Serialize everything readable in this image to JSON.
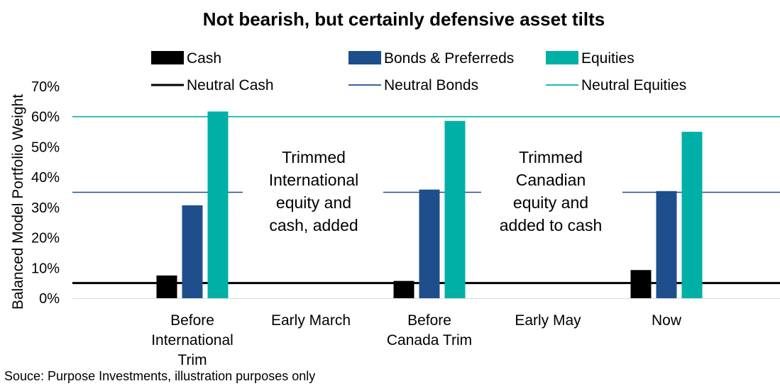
{
  "chart_data": {
    "type": "bar",
    "title": "Not bearish, but certainly defensive asset tilts",
    "ylabel": "Balanced Model Portfolio Weight",
    "xlabel": "",
    "ylim": [
      0,
      70
    ],
    "yticks": [
      0,
      10,
      20,
      30,
      40,
      50,
      60,
      70
    ],
    "ytick_labels": [
      "0%",
      "10%",
      "20%",
      "30%",
      "40%",
      "50%",
      "60%",
      "70%"
    ],
    "categories": [
      [
        "Before",
        "International",
        "Trim"
      ],
      [
        "Early March"
      ],
      [
        "Before",
        "Canada Trim"
      ],
      [
        "Early May"
      ],
      [
        "Now"
      ]
    ],
    "series": [
      {
        "name": "Cash",
        "color": "#000000",
        "values": [
          7.5,
          null,
          5.7,
          null,
          9.3
        ]
      },
      {
        "name": "Bonds & Preferreds",
        "color": "#1f4e8c",
        "values": [
          30.7,
          null,
          35.9,
          null,
          35.4
        ]
      },
      {
        "name": "Equities",
        "color": "#00b0a6",
        "values": [
          61.7,
          null,
          58.6,
          null,
          55.0
        ]
      }
    ],
    "reference_lines": [
      {
        "name": "Neutral Cash",
        "color": "#000000",
        "value": 5
      },
      {
        "name": "Neutral Bonds",
        "color": "#1f4e8c",
        "value": 35
      },
      {
        "name": "Neutral Equities",
        "color": "#00b0a6",
        "value": 60
      }
    ],
    "annotations": [
      {
        "category_index": 1,
        "lines": [
          "Trimmed",
          "International",
          "equity and",
          "cash, added"
        ]
      },
      {
        "category_index": 3,
        "lines": [
          "Trimmed",
          "Canadian",
          "equity and",
          "added to cash"
        ]
      }
    ],
    "legend_position": "top",
    "grid": false
  },
  "source": "Souce: Purpose Investments, illustration purposes only"
}
